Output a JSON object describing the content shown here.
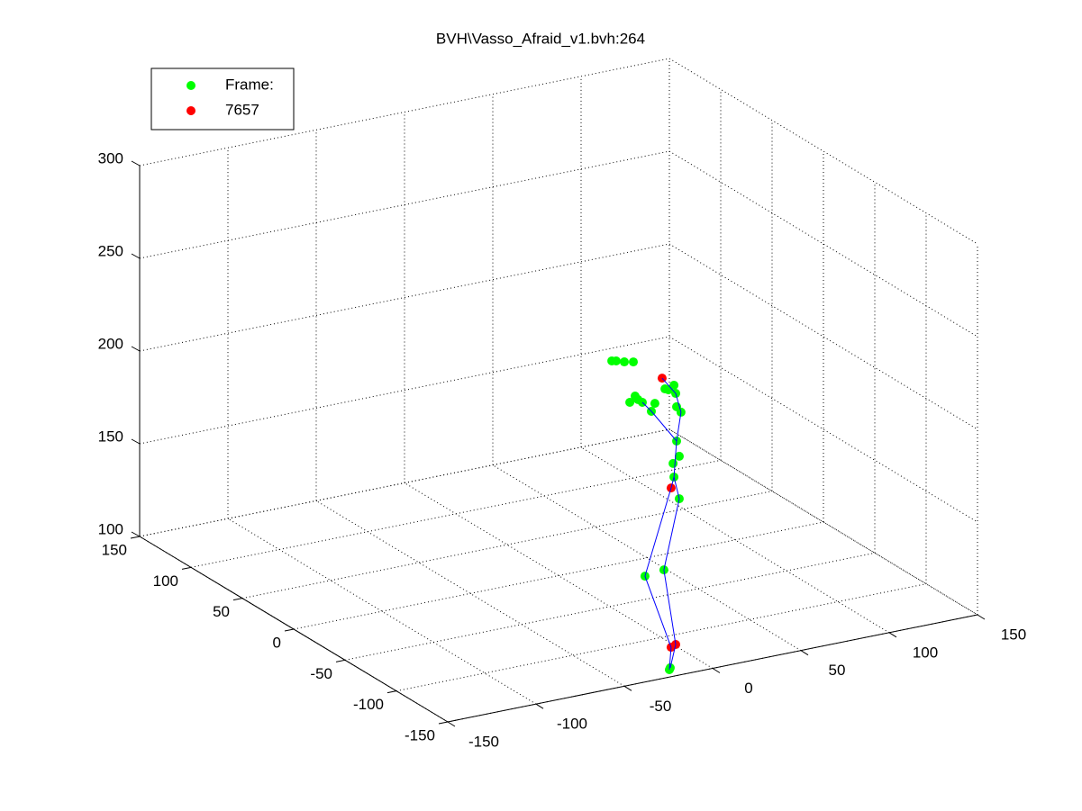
{
  "chart_data": {
    "type": "scatter3d",
    "title": "BVH\\Vasso_Afraid_v1.bvh:264",
    "xlim": [
      -150,
      150
    ],
    "ylim": [
      -150,
      150
    ],
    "zlim": [
      100,
      300
    ],
    "xticks": [
      -150,
      -100,
      -50,
      0,
      50,
      100,
      150
    ],
    "yticks": [
      -150,
      -100,
      -50,
      0,
      50,
      100,
      150
    ],
    "zticks": [
      100,
      150,
      200,
      250,
      300
    ],
    "grid": true,
    "legend": "upper left",
    "series": [
      {
        "name": "Frame:",
        "color": "#00ff00",
        "mode": "markers",
        "x": [
          -24.5,
          -24,
          -38.3,
          -27.6,
          -18.9,
          -21.9,
          -22.4,
          -18.9,
          -20.4,
          -17.9,
          -20.4,
          -20.9,
          -21.9,
          -25,
          -27,
          -34.7,
          -32.7,
          -39.8,
          -43.9,
          -42.3,
          -44.9,
          -50,
          -54.6,
          -57.1,
          -46.9
        ],
        "y": [
          -150,
          -150,
          -150,
          -150,
          -150,
          -150,
          -150,
          -150,
          -150,
          -150,
          -150,
          -150,
          -150,
          -150,
          -150,
          -150,
          -150,
          -150,
          -150,
          -150,
          -150,
          -150,
          -150,
          -150,
          -150
        ],
        "z": [
          104,
          104.9,
          157.1,
          158.4,
          195.1,
          207.4,
          214.8,
          218,
          226.5,
          241.6,
          245,
          252.3,
          256.9,
          255,
          255.9,
          245.3,
          249.2,
          251.1,
          255.3,
          253.1,
          273.9,
          274.9,
          276.3,
          276.8,
          252.5
        ]
      },
      {
        "name": "7657",
        "color": "#ff0000",
        "mode": "markers",
        "x": [
          -23.5,
          -20.9,
          -23.5,
          -28.6
        ],
        "y": [
          -150,
          -150,
          -150,
          -150
        ],
        "z": [
          115.9,
          116.9,
          201.8,
          262
        ]
      },
      {
        "color": "#0000ff",
        "mode": "line",
        "x": [
          -24.5,
          -23.5,
          -38.3,
          -23.5,
          -21.9,
          -20.4,
          -17.9,
          -20.9,
          -28.6,
          null,
          -24,
          -20.9,
          -27.6,
          -18.9,
          -21.9,
          null,
          -20.4,
          -34.7,
          -39.8
        ],
        "y": [
          -150,
          -150,
          -150,
          -150,
          -150,
          -150,
          -150,
          -150,
          -150,
          null,
          -150,
          -150,
          -150,
          -150,
          -150,
          null,
          -150,
          -150,
          -150
        ],
        "z": [
          104,
          115.9,
          157.1,
          201.8,
          207.4,
          226.5,
          241.6,
          252.3,
          262,
          null,
          104.9,
          116.9,
          158.4,
          195.1,
          207.4,
          null,
          226.5,
          245.3,
          251.1
        ]
      }
    ]
  }
}
